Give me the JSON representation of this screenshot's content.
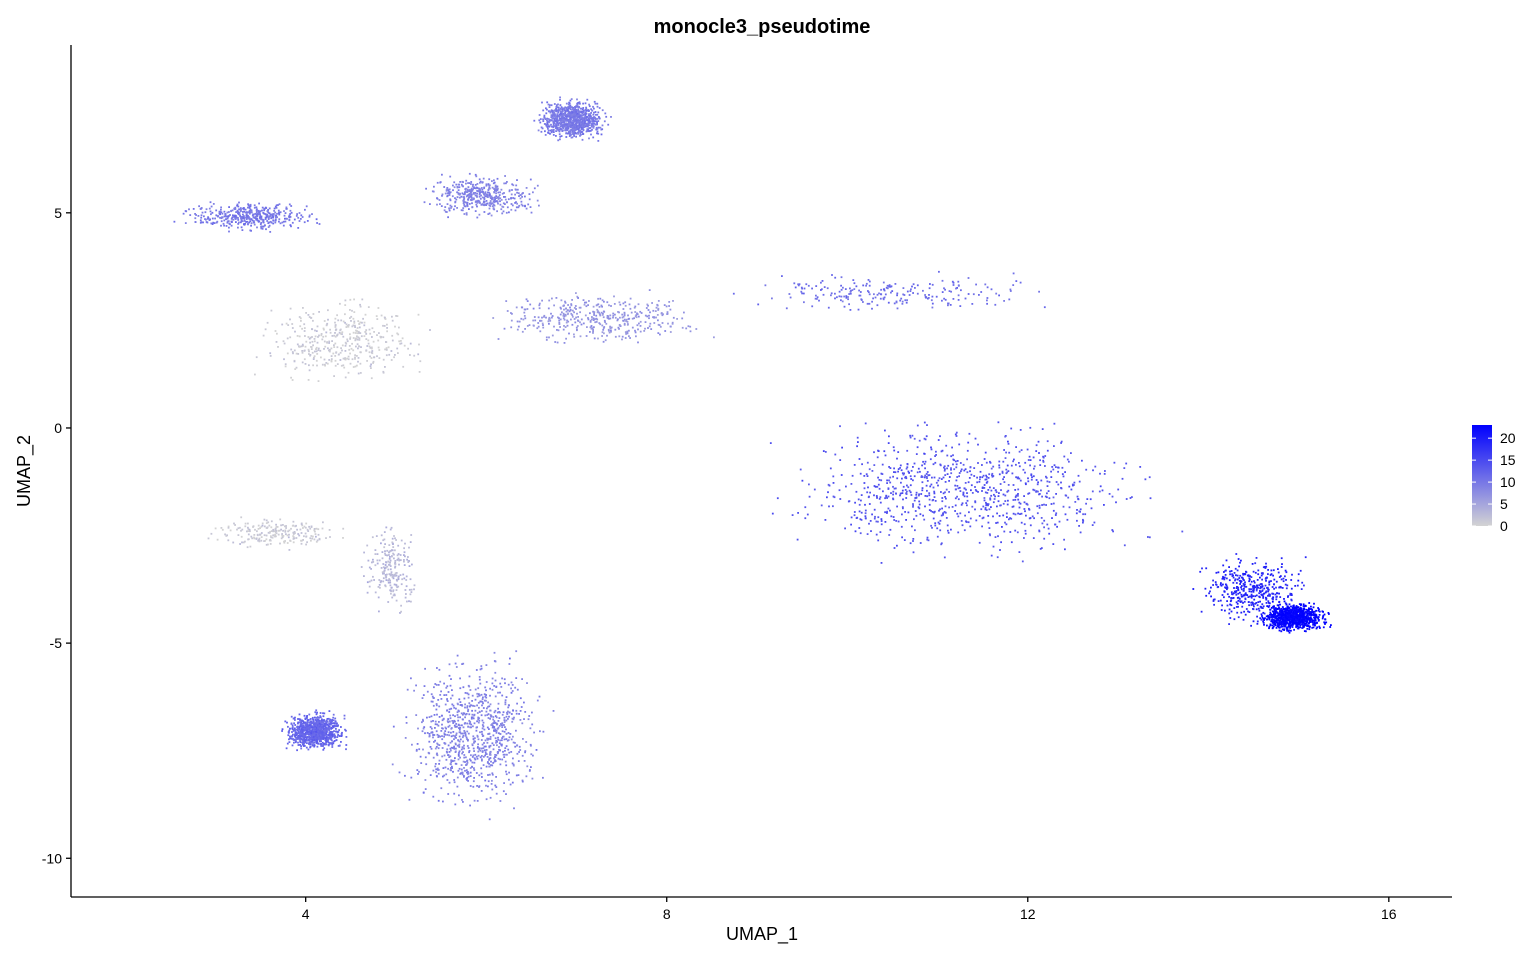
{
  "chart_data": {
    "type": "scatter",
    "title": "monocle3_pseudotime",
    "xlabel": "UMAP_1",
    "ylabel": "UMAP_2",
    "xlim": [
      1.4,
      16.7
    ],
    "ylim": [
      -10.9,
      8.9
    ],
    "x_ticks": [
      4,
      8,
      12,
      16
    ],
    "x_tick_labels": [
      "4",
      "8",
      "12",
      "16"
    ],
    "y_ticks": [
      -10,
      -5,
      0,
      5
    ],
    "y_tick_labels": [
      "-10",
      "-5",
      "0",
      "5"
    ],
    "grid": false,
    "legend": {
      "placement": "right",
      "type": "colorbar",
      "range": [
        0,
        23
      ],
      "ticks": [
        0,
        5,
        10,
        15,
        20
      ],
      "tick_labels": [
        "0",
        "5",
        "10",
        "15",
        "20"
      ],
      "color_low": "#d3d3d3",
      "color_high": "#0000ff"
    },
    "point_color_low": "#d3d3d3",
    "point_color_high": "#0000ff",
    "clusters": [
      {
        "region": "top-left arm",
        "x_range": [
          2.5,
          4.3
        ],
        "y_range": [
          4.5,
          5.3
        ],
        "pseudotime": 10,
        "density": "medium"
      },
      {
        "region": "upper-middle branch",
        "x_range": [
          5.2,
          6.7
        ],
        "y_range": [
          4.8,
          6.0
        ],
        "pseudotime": 9,
        "density": "medium"
      },
      {
        "region": "top spike",
        "x_range": [
          6.5,
          7.4
        ],
        "y_range": [
          6.6,
          7.7
        ],
        "pseudotime": 10,
        "density": "high"
      },
      {
        "region": "left stem",
        "x_range": [
          3.3,
          5.5
        ],
        "y_range": [
          0.8,
          3.2
        ],
        "pseudotime": 1,
        "density": "medium"
      },
      {
        "region": "left lower arm",
        "x_range": [
          2.8,
          4.6
        ],
        "y_range": [
          -2.9,
          -2.0
        ],
        "pseudotime": 1,
        "density": "low"
      },
      {
        "region": "lower stalk",
        "x_range": [
          4.6,
          5.3
        ],
        "y_range": [
          -4.5,
          -2.0
        ],
        "pseudotime": 3,
        "density": "low"
      },
      {
        "region": "bottom blob",
        "x_range": [
          4.9,
          6.8
        ],
        "y_range": [
          -9.2,
          -5.0
        ],
        "pseudotime": 9,
        "density": "high"
      },
      {
        "region": "small left blob",
        "x_range": [
          3.7,
          4.5
        ],
        "y_range": [
          -7.6,
          -6.5
        ],
        "pseudotime": 12,
        "density": "high"
      },
      {
        "region": "upper bridge",
        "x_range": [
          5.8,
          8.7
        ],
        "y_range": [
          1.8,
          3.3
        ],
        "pseudotime": 7,
        "density": "medium"
      },
      {
        "region": "upper right arm",
        "x_range": [
          8.5,
          12.4
        ],
        "y_range": [
          2.6,
          3.7
        ],
        "pseudotime": 11,
        "density": "low"
      },
      {
        "region": "main body",
        "x_range": [
          8.8,
          13.8
        ],
        "y_range": [
          -3.3,
          0.5
        ],
        "pseudotime": 14,
        "density": "high"
      },
      {
        "region": "tail to end",
        "x_range": [
          13.8,
          15.2
        ],
        "y_range": [
          -4.7,
          -2.8
        ],
        "pseudotime": 19,
        "density": "medium"
      },
      {
        "region": "terminal blob",
        "x_range": [
          14.5,
          15.4
        ],
        "y_range": [
          -4.8,
          -4.0
        ],
        "pseudotime": 23,
        "density": "high"
      }
    ]
  }
}
